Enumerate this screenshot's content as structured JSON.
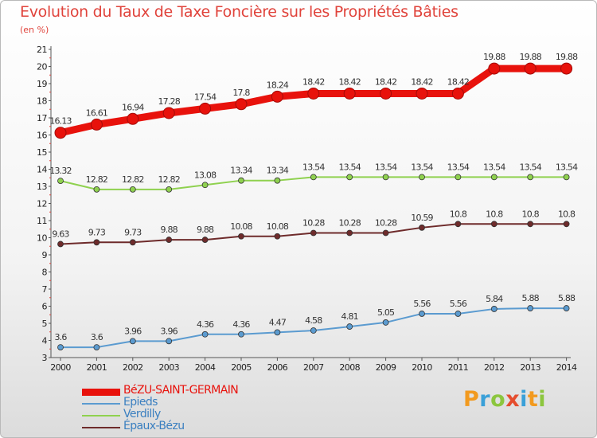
{
  "title": "Evolution du Taux de Taxe Foncière sur les Propriétés Bâties",
  "unit_label": "(en %)",
  "logo": {
    "text": "Proxiti",
    "letters": [
      {
        "ch": "P",
        "color": "#f29a1f"
      },
      {
        "ch": "r",
        "color": "#3aa0d8"
      },
      {
        "ch": "o",
        "color": "#8cc63e"
      },
      {
        "ch": "x",
        "color": "#e54d2e"
      },
      {
        "ch": "i",
        "color": "#3aa0d8"
      },
      {
        "ch": "t",
        "color": "#f29a1f"
      },
      {
        "ch": "i",
        "color": "#8cc63e"
      }
    ]
  },
  "chart_data": {
    "type": "line",
    "categories": [
      "2000",
      "2001",
      "2002",
      "2003",
      "2004",
      "2005",
      "2006",
      "2007",
      "2008",
      "2009",
      "2010",
      "2011",
      "2012",
      "2013",
      "2014"
    ],
    "yticks": [
      3,
      4,
      5,
      6,
      7,
      8,
      9,
      10,
      11,
      12,
      13,
      14,
      15,
      16,
      17,
      18,
      19,
      20,
      21
    ],
    "ylim": [
      3,
      21
    ],
    "grid": false,
    "legend_position": "bottom-left",
    "series": [
      {
        "name": "BéZU-SAINT-GERMAIN",
        "color": "#e8120c",
        "bold": true,
        "values": [
          16.13,
          16.61,
          16.94,
          17.28,
          17.54,
          17.8,
          18.24,
          18.42,
          18.42,
          18.42,
          18.42,
          18.42,
          19.88,
          19.88,
          19.88
        ],
        "labels": [
          "16.13",
          "16.61",
          "16.94",
          "17.28",
          "17.54",
          "17.8",
          "18.24",
          "18.42",
          "18.42",
          "18.42",
          "18.42",
          "18.42",
          "19.88",
          "19.88",
          "19.88"
        ]
      },
      {
        "name": "Epieds",
        "color": "#5b9bd0",
        "bold": false,
        "values": [
          3.6,
          3.6,
          3.96,
          3.96,
          4.36,
          4.36,
          4.47,
          4.58,
          4.81,
          5.05,
          5.56,
          5.56,
          5.84,
          5.88,
          5.88
        ],
        "labels": [
          "3.6",
          "3.6",
          "3.96",
          "3.96",
          "4.36",
          "4.36",
          "4.47",
          "4.58",
          "4.81",
          "5.05",
          "5.56",
          "5.56",
          "5.84",
          "5.88",
          "5.88"
        ]
      },
      {
        "name": "Verdilly",
        "color": "#8fd14f",
        "bold": false,
        "values": [
          13.32,
          12.82,
          12.82,
          12.82,
          13.08,
          13.34,
          13.34,
          13.54,
          13.54,
          13.54,
          13.54,
          13.54,
          13.54,
          13.54,
          13.54
        ],
        "labels": [
          "13.32",
          "12.82",
          "12.82",
          "12.82",
          "13.08",
          "13.34",
          "13.34",
          "13.54",
          "13.54",
          "13.54",
          "13.54",
          "13.54",
          "13.54",
          "13.54",
          "13.54"
        ]
      },
      {
        "name": "Épaux-Bézu",
        "color": "#6e2b2b",
        "bold": false,
        "values": [
          9.63,
          9.73,
          9.73,
          9.88,
          9.88,
          10.08,
          10.08,
          10.28,
          10.28,
          10.28,
          10.59,
          10.8,
          10.8,
          10.8,
          10.8
        ],
        "labels": [
          "9.63",
          "9.73",
          "9.73",
          "9.88",
          "9.88",
          "10.08",
          "10.08",
          "10.28",
          "10.28",
          "10.28",
          "10.59",
          "10.8",
          "10.8",
          "10.8",
          "10.8"
        ]
      }
    ]
  }
}
